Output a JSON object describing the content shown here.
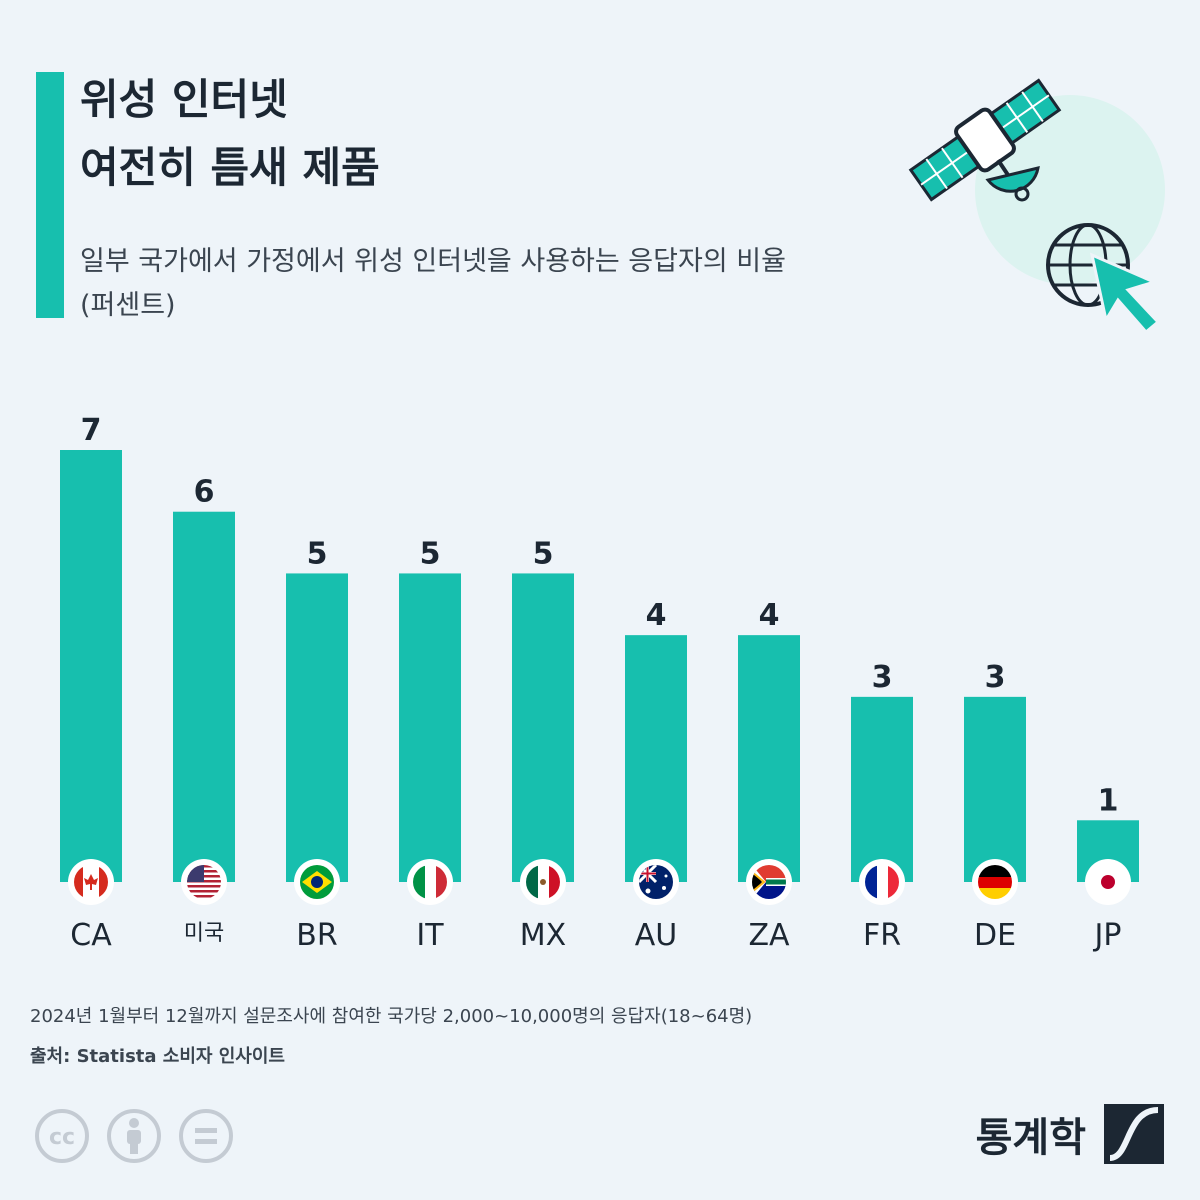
{
  "header": {
    "title_lines": [
      "위성 인터넷",
      "여전히 틈새 제품"
    ],
    "subtitle_lines": [
      "일부 국가에서 가정에서 위성 인터넷을 사용하는 응답자의 비율",
      "(퍼센트)"
    ]
  },
  "colors": {
    "accent": "#17bfae",
    "text": "#1c2733",
    "background": "#eef4f9"
  },
  "chart_data": {
    "type": "bar",
    "categories": [
      "CA",
      "미국",
      "BR",
      "IT",
      "MX",
      "AU",
      "ZA",
      "FR",
      "DE",
      "JP"
    ],
    "values": [
      7,
      6,
      5,
      5,
      5,
      4,
      4,
      3,
      3,
      1
    ],
    "value_labels": [
      "7",
      "6",
      "5",
      "5",
      "5",
      "4",
      "4",
      "3",
      "3",
      "1"
    ],
    "flags": [
      "flag-canada",
      "flag-usa",
      "flag-brazil",
      "flag-italy",
      "flag-mexico",
      "flag-australia",
      "flag-south-africa",
      "flag-france",
      "flag-germany",
      "flag-japan"
    ],
    "title": "",
    "xlabel": "",
    "ylabel": "",
    "ylim": [
      0,
      7
    ],
    "grid": false,
    "bar_color": "#17bfae"
  },
  "footer": {
    "note": "2024년 1월부터 12월까지 설문조사에 참여한 국가당 2,000~10,000명의 응답자(18~64명)",
    "source": "출처: Statista 소비자 인사이트",
    "brand": "통계학",
    "license_icons": [
      "cc-icon",
      "attribution-icon",
      "no-derivatives-icon"
    ]
  }
}
